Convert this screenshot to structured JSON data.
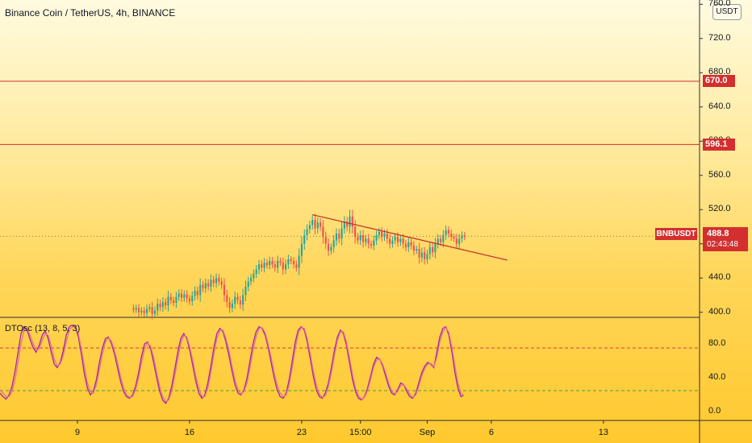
{
  "header": {
    "title": "Binance Coin / TetherUS, 4h, BINANCE",
    "currency": "USDT"
  },
  "indicator": {
    "title": "DTOsc (13, 8, 5, 3)"
  },
  "colors": {
    "bull": "#26a69a",
    "bear": "#ef5350",
    "level": "#d32f2f",
    "osc_k": "#9c27b0",
    "osc_d": "#ef6c8a",
    "upper_band": "#e53935",
    "lower_band": "#43a047"
  },
  "markers": {
    "symbol": "BNBUSDT",
    "last_price": "488.8",
    "countdown": "02:43:48"
  },
  "chart_data": [
    {
      "type": "candlestick",
      "title": "Binance Coin / TetherUS, 4h, BINANCE",
      "y_ticks": [
        "760.0",
        "720.0",
        "680.0",
        "640.0",
        "600.0",
        "560.0",
        "520.0",
        "480.0",
        "440.0",
        "400.0"
      ],
      "ylim": [
        395,
        765
      ],
      "x_ticks": [
        {
          "label": "9",
          "index": 15
        },
        {
          "label": "16",
          "index": 57
        },
        {
          "label": "23",
          "index": 99
        },
        {
          "label": "15:00",
          "index": 121
        },
        {
          "label": "Sep",
          "index": 146
        },
        {
          "label": "6",
          "index": 170
        },
        {
          "label": "13",
          "index": 212
        }
      ],
      "x_range": [
        -14,
        248
      ],
      "horizontal_levels": [
        {
          "value": 670.0,
          "label": "670.0"
        },
        {
          "value": 596.1,
          "label": "596.1"
        }
      ],
      "last_price": 488.8,
      "trendline": [
        [
          103,
          514
        ],
        [
          176,
          461
        ]
      ],
      "candles_approx": [
        [
          36,
          405,
          395,
          403
        ],
        [
          37,
          403,
          396,
          405
        ],
        [
          38,
          405,
          398,
          400
        ],
        [
          39,
          400,
          392,
          402
        ],
        [
          40,
          402,
          395,
          399
        ],
        [
          41,
          399,
          394,
          404
        ],
        [
          42,
          404,
          398,
          406
        ],
        [
          43,
          406,
          397,
          398
        ],
        [
          44,
          398,
          393,
          402
        ],
        [
          45,
          402,
          398,
          410
        ],
        [
          46,
          410,
          402,
          406
        ],
        [
          47,
          406,
          400,
          412
        ],
        [
          48,
          412,
          404,
          408
        ],
        [
          49,
          408,
          403,
          418
        ],
        [
          50,
          418,
          409,
          414
        ],
        [
          51,
          414,
          405,
          411
        ],
        [
          52,
          411,
          404,
          418
        ],
        [
          53,
          418,
          410,
          422
        ],
        [
          54,
          422,
          414,
          417
        ],
        [
          55,
          417,
          410,
          421
        ],
        [
          56,
          421,
          412,
          416
        ],
        [
          57,
          416,
          408,
          413
        ],
        [
          58,
          413,
          405,
          419
        ],
        [
          59,
          419,
          412,
          425
        ],
        [
          60,
          425,
          416,
          420
        ],
        [
          61,
          420,
          412,
          432
        ],
        [
          62,
          432,
          422,
          428
        ],
        [
          63,
          428,
          420,
          434
        ],
        [
          64,
          434,
          425,
          430
        ],
        [
          65,
          430,
          422,
          438
        ],
        [
          66,
          438,
          428,
          434
        ],
        [
          67,
          434,
          425,
          440
        ],
        [
          68,
          440,
          430,
          436
        ],
        [
          69,
          436,
          428,
          432
        ],
        [
          70,
          432,
          424,
          420
        ],
        [
          71,
          420,
          408,
          412
        ],
        [
          72,
          412,
          402,
          405
        ],
        [
          73,
          405,
          396,
          410
        ],
        [
          74,
          410,
          402,
          418
        ],
        [
          75,
          418,
          410,
          414
        ],
        [
          76,
          414,
          405,
          409
        ],
        [
          77,
          409,
          400,
          420
        ],
        [
          78,
          420,
          410,
          430
        ],
        [
          79,
          430,
          420,
          436
        ],
        [
          80,
          436,
          426,
          440
        ],
        [
          81,
          440,
          430,
          445
        ],
        [
          82,
          445,
          435,
          450
        ],
        [
          83,
          450,
          440,
          456
        ],
        [
          84,
          456,
          446,
          452
        ],
        [
          85,
          452,
          444,
          458
        ],
        [
          86,
          458,
          448,
          455
        ],
        [
          87,
          455,
          446,
          460
        ],
        [
          88,
          460,
          450,
          456
        ],
        [
          89,
          456,
          448,
          452
        ],
        [
          90,
          452,
          444,
          460
        ],
        [
          91,
          460,
          450,
          458
        ],
        [
          92,
          458,
          448,
          450
        ],
        [
          93,
          450,
          442,
          456
        ],
        [
          94,
          456,
          448,
          462
        ],
        [
          95,
          462,
          452,
          460
        ],
        [
          96,
          460,
          448,
          456
        ],
        [
          97,
          456,
          444,
          452
        ],
        [
          98,
          452,
          442,
          466
        ],
        [
          99,
          466,
          456,
          480
        ],
        [
          100,
          480,
          470,
          490
        ],
        [
          101,
          490,
          480,
          497
        ],
        [
          102,
          497,
          486,
          502
        ],
        [
          103,
          502,
          490,
          508
        ],
        [
          104,
          508,
          494,
          498
        ],
        [
          105,
          498,
          488,
          505
        ],
        [
          106,
          505,
          494,
          500
        ],
        [
          107,
          500,
          486,
          488
        ],
        [
          108,
          488,
          474,
          480
        ],
        [
          109,
          480,
          466,
          472
        ],
        [
          110,
          472,
          464,
          476
        ],
        [
          111,
          476,
          466,
          484
        ],
        [
          112,
          484,
          476,
          492
        ],
        [
          113,
          492,
          480,
          486
        ],
        [
          114,
          486,
          476,
          498
        ],
        [
          115,
          498,
          488,
          506
        ],
        [
          116,
          506,
          494,
          500
        ],
        [
          117,
          500,
          490,
          512
        ],
        [
          118,
          512,
          496,
          500
        ],
        [
          119,
          500,
          486,
          488
        ],
        [
          120,
          488,
          478,
          484
        ],
        [
          121,
          484,
          476,
          490
        ],
        [
          122,
          490,
          480,
          482
        ],
        [
          123,
          482,
          472,
          486
        ],
        [
          124,
          486,
          476,
          480
        ],
        [
          125,
          480,
          474,
          478
        ],
        [
          126,
          478,
          470,
          484
        ],
        [
          127,
          484,
          476,
          490
        ],
        [
          128,
          490,
          482,
          494
        ],
        [
          129,
          494,
          486,
          488
        ],
        [
          130,
          488,
          480,
          492
        ],
        [
          131,
          492,
          484,
          486
        ],
        [
          132,
          486,
          478,
          480
        ],
        [
          133,
          480,
          472,
          484
        ],
        [
          134,
          484,
          476,
          488
        ],
        [
          135,
          488,
          478,
          482
        ],
        [
          136,
          482,
          474,
          486
        ],
        [
          137,
          486,
          478,
          480
        ],
        [
          138,
          480,
          470,
          476
        ],
        [
          139,
          476,
          466,
          482
        ],
        [
          140,
          482,
          472,
          478
        ],
        [
          141,
          478,
          468,
          472
        ],
        [
          142,
          472,
          462,
          474
        ],
        [
          143,
          474,
          460,
          464
        ],
        [
          144,
          464,
          454,
          470
        ],
        [
          145,
          470,
          458,
          462
        ],
        [
          146,
          462,
          452,
          468
        ],
        [
          147,
          468,
          458,
          476
        ],
        [
          148,
          476,
          464,
          470
        ],
        [
          149,
          470,
          462,
          480
        ],
        [
          150,
          480,
          470,
          486
        ],
        [
          151,
          486,
          476,
          482
        ],
        [
          152,
          482,
          474,
          490
        ],
        [
          153,
          490,
          480,
          496
        ],
        [
          154,
          496,
          484,
          492
        ],
        [
          155,
          492,
          482,
          488
        ],
        [
          156,
          488,
          478,
          486
        ],
        [
          157,
          486,
          476,
          480
        ],
        [
          158,
          480,
          474,
          486
        ],
        [
          159,
          486,
          478,
          490
        ],
        [
          160,
          490,
          480,
          488
        ]
      ]
    },
    {
      "type": "line",
      "title": "DTOsc (13, 8, 5, 3)",
      "y_ticks": [
        "80.0",
        "40.0",
        "0.0"
      ],
      "ylim": [
        -10,
        110
      ],
      "upper_band": 75,
      "lower_band": 25,
      "series": [
        {
          "values": [
            22,
            18,
            15,
            20,
            30,
            48,
            70,
            92,
            100,
            96,
            85,
            75,
            70,
            78,
            90,
            95,
            86,
            70,
            56,
            52,
            58,
            72,
            90,
            100,
            102,
            100,
            88,
            68,
            45,
            28,
            20,
            24,
            38,
            58,
            75,
            86,
            88,
            80,
            68,
            52,
            36,
            24,
            18,
            16,
            20,
            30,
            46,
            66,
            80,
            82,
            74,
            58,
            40,
            24,
            14,
            10,
            16,
            30,
            50,
            70,
            86,
            92,
            86,
            72,
            54,
            36,
            22,
            16,
            20,
            34,
            54,
            76,
            92,
            98,
            94,
            82,
            66,
            48,
            32,
            22,
            20,
            26,
            40,
            60,
            80,
            94,
            100,
            98,
            90,
            76,
            58,
            40,
            26,
            18,
            16,
            22,
            38,
            60,
            82,
            96,
            100,
            96,
            82,
            62,
            42,
            26,
            18,
            16,
            22,
            34,
            52,
            72,
            88,
            96,
            92,
            78,
            58,
            38,
            24,
            16,
            14,
            18,
            28,
            42,
            56,
            64,
            62,
            54,
            42,
            30,
            22,
            20,
            26,
            34,
            32,
            24,
            18,
            16,
            22,
            34,
            46,
            54,
            58,
            56,
            52,
            70,
            88,
            98,
            100,
            90,
            70,
            46,
            28,
            18,
            20
          ]
        },
        {
          "values": [
            26,
            22,
            18,
            18,
            24,
            38,
            58,
            80,
            96,
            98,
            90,
            80,
            72,
            74,
            84,
            92,
            90,
            78,
            62,
            54,
            56,
            66,
            82,
            96,
            100,
            100,
            92,
            74,
            54,
            34,
            24,
            22,
            32,
            50,
            68,
            82,
            87,
            83,
            72,
            58,
            42,
            28,
            20,
            17,
            18,
            26,
            40,
            58,
            74,
            81,
            77,
            64,
            46,
            30,
            18,
            12,
            14,
            24,
            42,
            62,
            80,
            90,
            88,
            76,
            60,
            42,
            28,
            18,
            18,
            28,
            46,
            68,
            86,
            96,
            96,
            86,
            72,
            54,
            38,
            26,
            21,
            24,
            34,
            52,
            72,
            88,
            98,
            99,
            93,
            80,
            64,
            46,
            32,
            22,
            18,
            20,
            32,
            52,
            74,
            92,
            99,
            98,
            86,
            68,
            48,
            32,
            21,
            17,
            19,
            30,
            46,
            66,
            84,
            94,
            94,
            82,
            64,
            44,
            28,
            19,
            15,
            17,
            25,
            38,
            52,
            61,
            62,
            56,
            46,
            34,
            25,
            21,
            24,
            31,
            32,
            27,
            21,
            17,
            20,
            30,
            42,
            51,
            56,
            57,
            53,
            64,
            82,
            94,
            99,
            93,
            76,
            54,
            34,
            22,
            19
          ]
        }
      ]
    }
  ],
  "y_axis_labels": {
    "price": [
      "760.0",
      "720.0",
      "680.0",
      "640.0",
      "600.0",
      "560.0",
      "520.0",
      "480.0",
      "440.0",
      "400.0"
    ],
    "osc": [
      "80.0",
      "40.0",
      "0.0"
    ]
  },
  "x_axis_labels": [
    "9",
    "16",
    "23",
    "15:00",
    "Sep",
    "6",
    "13"
  ]
}
